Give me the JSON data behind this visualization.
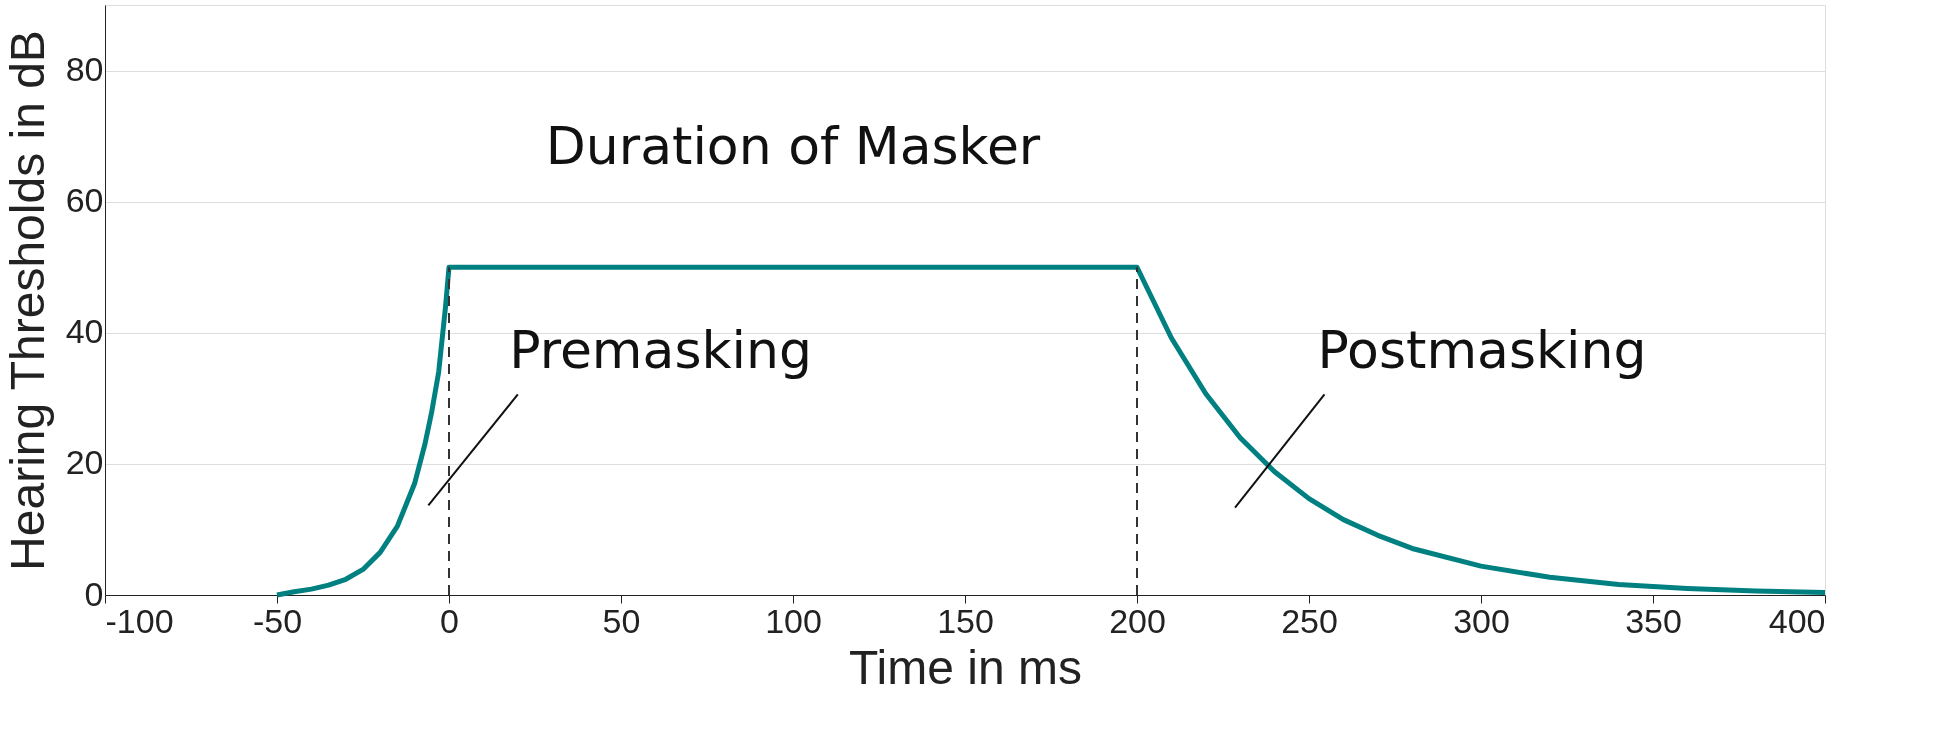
{
  "chart_data": {
    "type": "line",
    "xlabel": "Time in ms",
    "ylabel": "Hearing Thresholds in dB",
    "xlim": [
      -100,
      400
    ],
    "ylim": [
      0,
      90
    ],
    "xticks": [
      -100,
      -50,
      0,
      50,
      100,
      150,
      200,
      250,
      300,
      350,
      400
    ],
    "yticks": [
      0,
      20,
      40,
      60,
      80
    ],
    "grid": "y",
    "marker": "none",
    "series": [
      {
        "color": "#008080",
        "line_style": "solid",
        "x": [
          -50,
          -45,
          -40,
          -35,
          -30,
          -25,
          -20,
          -15,
          -10,
          -7,
          -5,
          -3,
          -1,
          0,
          200,
          210,
          220,
          230,
          240,
          250,
          260,
          270,
          280,
          300,
          320,
          340,
          360,
          380,
          400
        ],
        "values": [
          0,
          0.5,
          0.9,
          1.5,
          2.4,
          3.9,
          6.5,
          10.5,
          17,
          23,
          28,
          34,
          44,
          50,
          50,
          39.2,
          30.7,
          24.0,
          18.8,
          14.7,
          11.5,
          9.1,
          7.1,
          4.4,
          2.7,
          1.6,
          1.0,
          0.6,
          0.4
        ]
      },
      {
        "color": "#333333",
        "line_style": "dashed",
        "x": [
          0,
          0
        ],
        "values": [
          0,
          50
        ]
      },
      {
        "color": "#333333",
        "line_style": "dashed",
        "x": [
          200,
          200
        ],
        "values": [
          0,
          50
        ]
      }
    ],
    "annotations": [
      "Duration of Masker",
      "Premasking",
      "Postmasking"
    ]
  }
}
